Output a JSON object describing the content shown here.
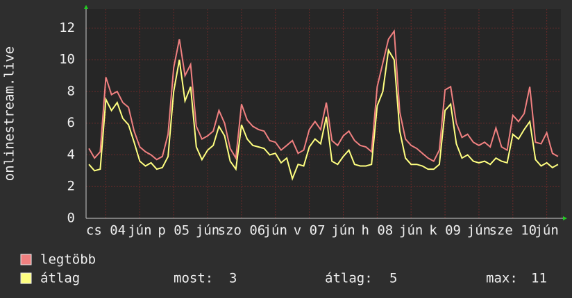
{
  "chart_data": {
    "type": "line",
    "y_label": "onlinestream.live",
    "categories": [
      null,
      null,
      null,
      "cs 04",
      null,
      null,
      null,
      null,
      null,
      "jún",
      null,
      null,
      null,
      null,
      null,
      "p 05",
      null,
      null,
      null,
      null,
      null,
      "jún",
      null,
      null,
      null,
      null,
      null,
      "szo 06",
      null,
      null,
      null,
      null,
      null,
      "jún",
      null,
      null,
      null,
      null,
      null,
      "v 07",
      null,
      null,
      null,
      null,
      null,
      "jún",
      null,
      null,
      null,
      null,
      null,
      "h 08",
      null,
      null,
      null,
      null,
      null,
      "jún",
      null,
      null,
      null,
      null,
      null,
      "k 09",
      null,
      null,
      null,
      null,
      null,
      "jún",
      null,
      null,
      null,
      null,
      null,
      "sze 10",
      null,
      null,
      null,
      null,
      null,
      "jún",
      null,
      null
    ],
    "series": [
      {
        "name": "legtöbb",
        "color": "#f08080",
        "values": [
          4.4,
          3.8,
          4.2,
          8.9,
          7.8,
          8.0,
          7.3,
          7.0,
          5.5,
          4.5,
          4.2,
          4.0,
          3.7,
          3.9,
          5.3,
          9.5,
          11.3,
          9.0,
          9.7,
          5.8,
          5.0,
          5.2,
          5.5,
          6.8,
          6.0,
          4.4,
          3.8,
          7.2,
          6.2,
          5.8,
          5.6,
          5.5,
          4.9,
          4.8,
          4.3,
          4.6,
          4.9,
          4.1,
          4.3,
          5.6,
          6.1,
          5.6,
          7.3,
          4.9,
          4.6,
          5.2,
          5.5,
          4.9,
          4.6,
          4.5,
          4.2,
          8.3,
          9.8,
          11.3,
          11.8,
          6.7,
          5.0,
          4.6,
          4.4,
          4.1,
          3.8,
          3.6,
          4.3,
          8.1,
          8.3,
          6.0,
          5.1,
          5.3,
          4.8,
          4.6,
          4.8,
          4.5,
          5.7,
          4.5,
          4.3,
          6.5,
          6.1,
          6.6,
          8.3,
          4.8,
          4.7,
          5.4,
          4.1,
          3.9
        ]
      },
      {
        "name": "átlag",
        "color": "#ffff80",
        "values": [
          3.4,
          3.0,
          3.1,
          7.5,
          6.8,
          7.3,
          6.3,
          5.9,
          4.8,
          3.6,
          3.3,
          3.5,
          3.1,
          3.2,
          3.9,
          8.0,
          10.0,
          7.4,
          8.3,
          4.5,
          3.7,
          4.3,
          4.6,
          5.8,
          5.2,
          3.6,
          3.1,
          5.9,
          5.0,
          4.6,
          4.5,
          4.4,
          4.0,
          4.1,
          3.5,
          3.8,
          2.5,
          3.4,
          3.3,
          4.5,
          5.0,
          4.7,
          6.4,
          3.6,
          3.4,
          3.9,
          4.3,
          3.4,
          3.3,
          3.3,
          3.4,
          7.1,
          8.0,
          10.6,
          10.0,
          5.5,
          3.8,
          3.4,
          3.4,
          3.3,
          3.1,
          3.1,
          3.4,
          6.8,
          7.2,
          4.7,
          3.8,
          4.0,
          3.6,
          3.5,
          3.6,
          3.4,
          3.8,
          3.6,
          3.5,
          5.3,
          5.0,
          5.6,
          6.1,
          3.7,
          3.3,
          3.5,
          3.2,
          3.4
        ]
      }
    ],
    "ylim": [
      0,
      13.2
    ],
    "yticks": [
      0,
      2,
      4,
      6,
      8,
      10,
      12
    ],
    "grid": true,
    "stats": [
      {
        "label": "most:",
        "value": 3
      },
      {
        "label": "átlag:",
        "value": 5
      },
      {
        "label": "max:",
        "value": 11
      }
    ]
  }
}
